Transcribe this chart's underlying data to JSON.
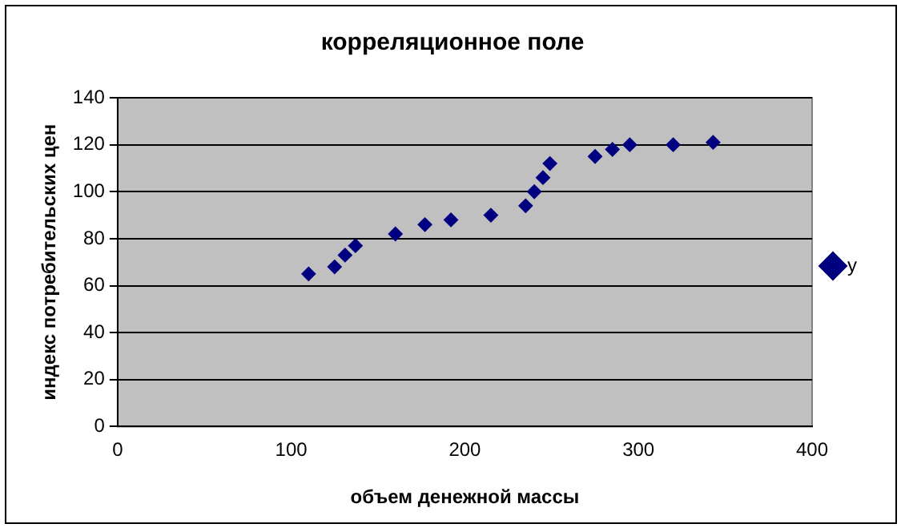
{
  "chart_data": {
    "type": "scatter",
    "title": "корреляционное поле",
    "xlabel": "объем денежной массы",
    "ylabel": "индекс потребительских цен",
    "x": [
      110,
      125,
      131,
      137,
      160,
      177,
      192,
      215,
      235,
      240,
      245,
      249,
      275,
      285,
      295,
      320,
      343
    ],
    "series": [
      {
        "name": "y",
        "color": "#000080",
        "values": [
          65,
          68,
          73,
          77,
          82,
          86,
          88,
          90,
          94,
          100,
          106,
          112,
          115,
          118,
          120,
          120,
          121
        ]
      }
    ],
    "xlim": [
      0,
      400
    ],
    "xticks": [
      0,
      100,
      200,
      300,
      400
    ],
    "ylim": [
      0,
      140
    ],
    "yticks": [
      0,
      20,
      40,
      60,
      80,
      100,
      120,
      140
    ],
    "grid": "y",
    "legend": "right",
    "marker": "diamond"
  }
}
